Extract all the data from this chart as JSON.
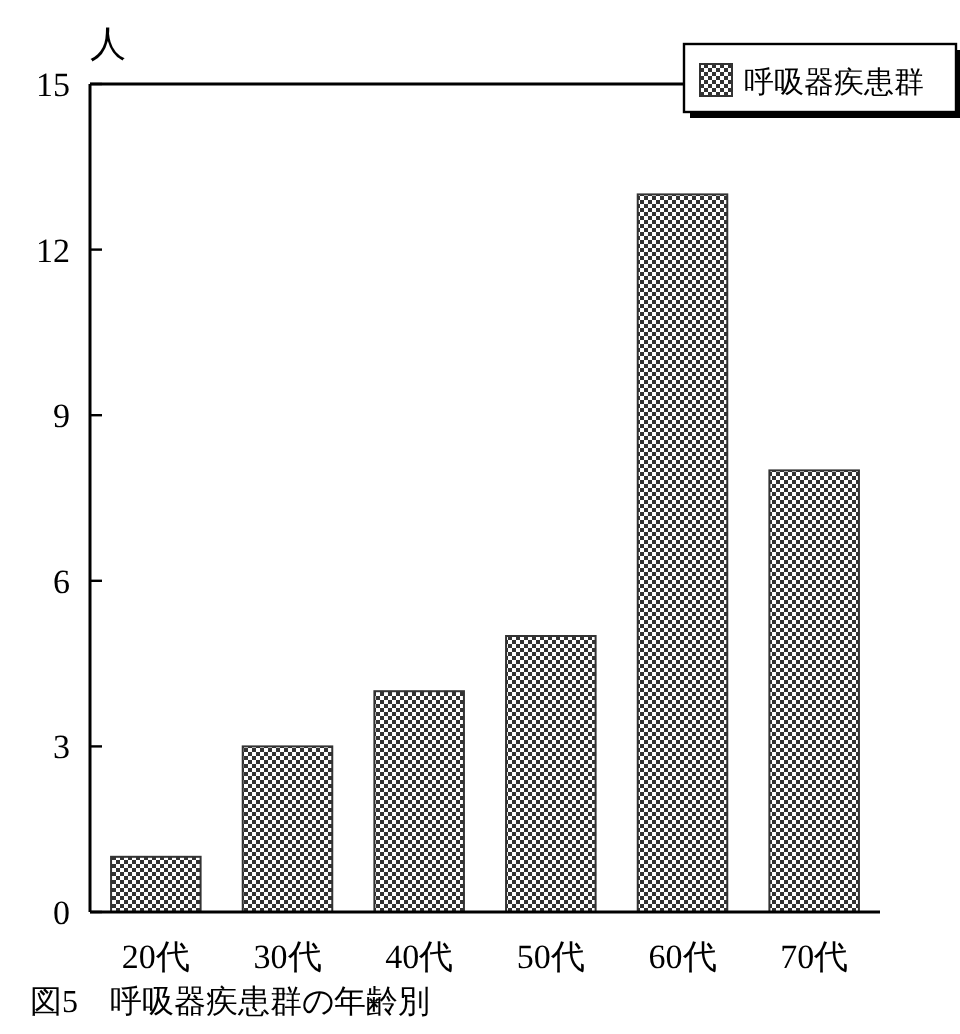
{
  "chart_data": {
    "type": "bar",
    "categories": [
      "20代",
      "30代",
      "40代",
      "50代",
      "60代",
      "70代"
    ],
    "series": [
      {
        "name": "呼吸器疾患群",
        "color": "#333333",
        "values": [
          1,
          3,
          4,
          5,
          13,
          8
        ]
      }
    ],
    "ylim": [
      0,
      15
    ],
    "yticks": [
      0,
      3,
      6,
      9,
      12,
      15
    ],
    "ylabel": "人",
    "legend": "top right",
    "annotations": [
      "図5　呼吸器疾患群の年齢別"
    ]
  }
}
